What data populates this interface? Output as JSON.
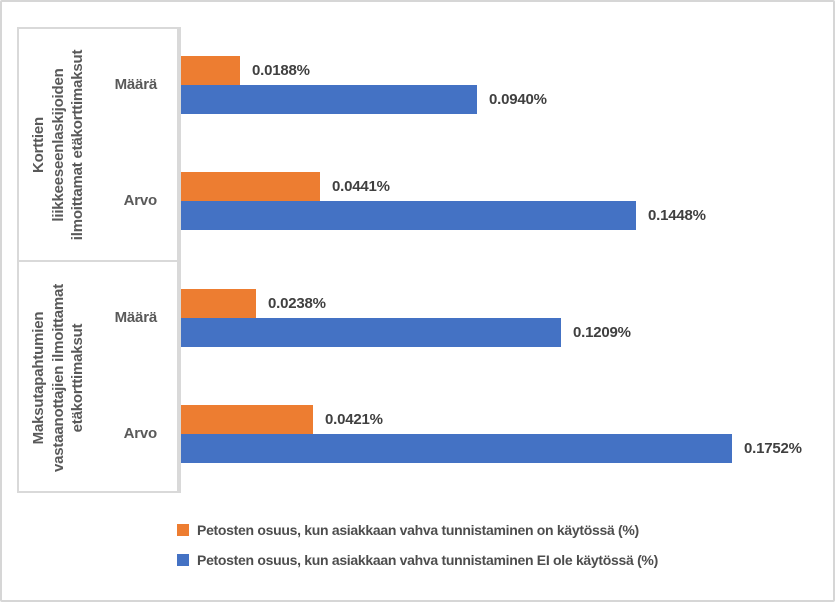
{
  "chart_data": {
    "type": "bar",
    "orientation": "horizontal",
    "value_unit": "%",
    "grid": false,
    "legend_position": "bottom",
    "axis_max_value": 0.1752,
    "series": [
      {
        "name": "Petosten osuus, kun asiakkaan vahva tunnistaminen on käytössä (%)",
        "color": "#ED7D31"
      },
      {
        "name": "Petosten osuus, kun asiakkaan vahva tunnistaminen EI ole käytössä (%)",
        "color": "#4472C4"
      }
    ],
    "groups": [
      {
        "label": "Korttien\nliikkeeseenlaskijoiden\nilmoittamat etäkorttimaksut",
        "rows": [
          {
            "category": "Määrä",
            "values": [
              0.0188,
              0.094
            ],
            "labels": [
              "0.0188%",
              "0.0940%"
            ]
          },
          {
            "category": "Arvo",
            "values": [
              0.0441,
              0.1448
            ],
            "labels": [
              "0.0441%",
              "0.1448%"
            ]
          }
        ]
      },
      {
        "label": "Maksutapahtumien\nvastaanottajien ilmoittamat\netäkorttimaksut",
        "rows": [
          {
            "category": "Määrä",
            "values": [
              0.0238,
              0.1209
            ],
            "labels": [
              "0.0238%",
              "0.1209%"
            ]
          },
          {
            "category": "Arvo",
            "values": [
              0.0421,
              0.1752
            ],
            "labels": [
              "0.0421%",
              "0.1752%"
            ]
          }
        ]
      }
    ]
  },
  "colors": {
    "sca_on": "#ED7D31",
    "sca_off": "#4472C4",
    "line_gray": "#D9D9D9",
    "label_text": "#595959",
    "data_label_text": "#404040"
  }
}
